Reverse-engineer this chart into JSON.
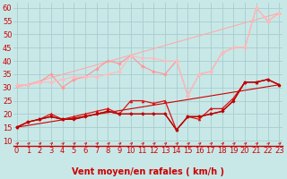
{
  "xlabel": "Vent moyen/en rafales ( km/h )",
  "xlim": [
    -0.3,
    23.3
  ],
  "ylim": [
    8,
    62
  ],
  "yticks": [
    10,
    15,
    20,
    25,
    30,
    35,
    40,
    45,
    50,
    55,
    60
  ],
  "xticks": [
    0,
    1,
    2,
    3,
    4,
    5,
    6,
    7,
    8,
    9,
    10,
    11,
    12,
    13,
    14,
    15,
    16,
    17,
    18,
    19,
    20,
    21,
    22,
    23
  ],
  "background_color": "#c8e8e8",
  "grid_color": "#a8cccc",
  "lines": [
    {
      "x": [
        0,
        23
      ],
      "y": [
        15,
        31
      ],
      "color": "#cc0000",
      "linewidth": 0.8,
      "marker": null
    },
    {
      "x": [
        0,
        23
      ],
      "y": [
        30,
        58
      ],
      "color": "#ffaaaa",
      "linewidth": 0.8,
      "marker": null
    },
    {
      "x": [
        0,
        1,
        2,
        3,
        4,
        5,
        6,
        7,
        8,
        9,
        10,
        11,
        12,
        13,
        14,
        15,
        16,
        17,
        18,
        19,
        20,
        21,
        22,
        23
      ],
      "y": [
        15,
        17,
        18,
        19,
        18,
        18,
        19,
        20,
        21,
        20,
        20,
        20,
        20,
        20,
        14,
        19,
        19,
        20,
        21,
        25,
        32,
        32,
        33,
        31
      ],
      "color": "#cc0000",
      "linewidth": 0.9,
      "marker": "s",
      "markersize": 2.0
    },
    {
      "x": [
        0,
        1,
        2,
        3,
        4,
        5,
        6,
        7,
        8,
        9,
        10,
        11,
        12,
        13,
        14,
        15,
        16,
        17,
        18,
        19,
        20,
        21,
        22,
        23
      ],
      "y": [
        15,
        17,
        18,
        20,
        18,
        19,
        20,
        21,
        22,
        20,
        25,
        25,
        24,
        25,
        14,
        19,
        18,
        22,
        22,
        26,
        32,
        32,
        33,
        31
      ],
      "color": "#dd1111",
      "linewidth": 0.9,
      "marker": "^",
      "markersize": 2.2
    },
    {
      "x": [
        0,
        1,
        2,
        3,
        4,
        5,
        6,
        7,
        8,
        9,
        10,
        11,
        12,
        13,
        14,
        15,
        16,
        17,
        18,
        19,
        20,
        21,
        22,
        23
      ],
      "y": [
        15,
        17,
        18,
        19,
        18,
        18,
        19,
        20,
        21,
        20,
        20,
        20,
        20,
        20,
        14,
        19,
        19,
        20,
        21,
        25,
        32,
        32,
        33,
        31
      ],
      "color": "#bb0000",
      "linewidth": 0.9,
      "marker": "D",
      "markersize": 1.8
    },
    {
      "x": [
        0,
        1,
        2,
        3,
        4,
        5,
        6,
        7,
        8,
        9,
        10,
        11,
        12,
        13,
        14,
        15,
        16,
        17,
        18,
        19,
        20,
        21,
        22,
        23
      ],
      "y": [
        31,
        31,
        32,
        35,
        30,
        33,
        34,
        37,
        40,
        39,
        42,
        38,
        36,
        35,
        40,
        27,
        35,
        36,
        43,
        45,
        45,
        60,
        55,
        58
      ],
      "color": "#ff9999",
      "linewidth": 0.9,
      "marker": "D",
      "markersize": 2.0
    },
    {
      "x": [
        0,
        1,
        2,
        3,
        4,
        5,
        6,
        7,
        8,
        9,
        10,
        11,
        12,
        13,
        14,
        15,
        16,
        17,
        18,
        19,
        20,
        21,
        22,
        23
      ],
      "y": [
        31,
        31,
        32,
        32,
        33,
        34,
        34,
        34,
        35,
        36,
        42,
        41,
        41,
        40,
        40,
        27,
        35,
        36,
        43,
        45,
        45,
        60,
        55,
        58
      ],
      "color": "#ffbbbb",
      "linewidth": 0.9,
      "marker": "D",
      "markersize": 2.0
    }
  ],
  "arrow_color": "#cc0000",
  "xlabel_color": "#cc0000",
  "xlabel_fontsize": 7.0,
  "tick_fontsize": 6.0,
  "tick_color": "#cc0000"
}
